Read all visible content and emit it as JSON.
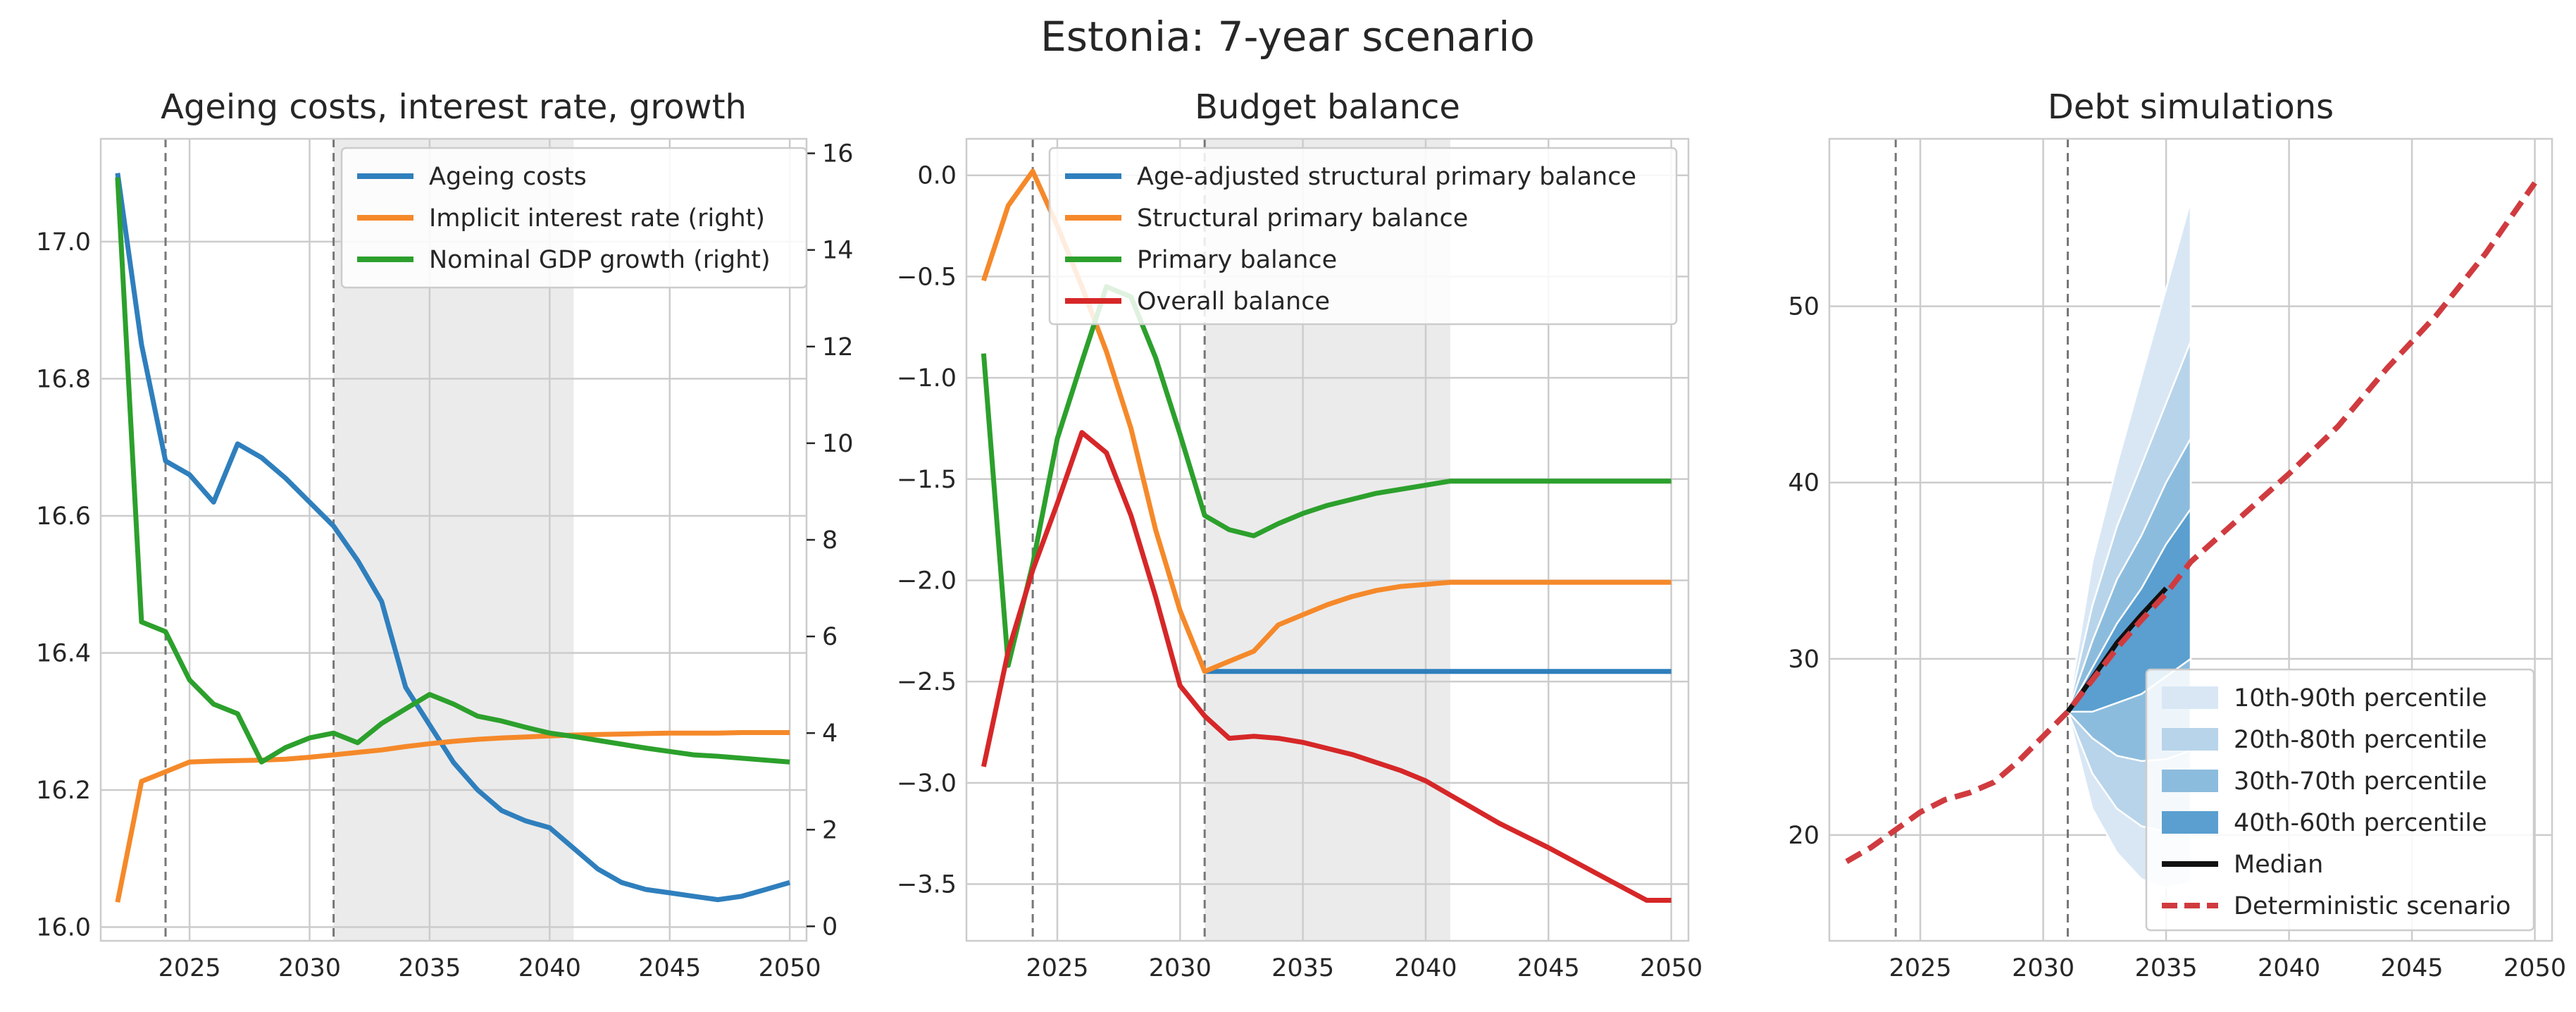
{
  "suptitle": "Estonia: 7-year scenario",
  "colors": {
    "blue": "#2f7fbd",
    "orange": "#f5892a",
    "green": "#2ca02c",
    "red": "#d62728",
    "grid": "#cccccc",
    "shade": "#ebebeb",
    "vline": "#777777",
    "fan1": "#d9e7f5",
    "fan2": "#b8d4ea",
    "fan3": "#8cbcdd",
    "fan4": "#5a9fd0",
    "median": "#111111",
    "det": "#d03b3f"
  },
  "chart_data": [
    {
      "id": "ageing",
      "type": "line",
      "title": "Ageing costs, interest rate, growth",
      "xlim": [
        2021.3,
        2050.7
      ],
      "ylim": [
        15.98,
        17.15
      ],
      "y2lim": [
        -0.3,
        16.3
      ],
      "xticks": [
        2025,
        2030,
        2035,
        2040,
        2045,
        2050
      ],
      "yticks": [
        16.0,
        16.2,
        16.4,
        16.6,
        16.8,
        17.0
      ],
      "ytick_labels": [
        "16.0",
        "16.2",
        "16.4",
        "16.6",
        "16.8",
        "17.0"
      ],
      "y2ticks": [
        0,
        2,
        4,
        6,
        8,
        10,
        12,
        14,
        16
      ],
      "y2tick_labels": [
        "0",
        "2",
        "4",
        "6",
        "8",
        "10",
        "12",
        "14",
        "16"
      ],
      "vlines": [
        2024,
        2031
      ],
      "shade": [
        2031,
        2041
      ],
      "legend_position": "top-right",
      "series": [
        {
          "name": "Ageing costs",
          "axis": "left",
          "color": "blue",
          "x": [
            2022,
            2023,
            2024,
            2025,
            2026,
            2027,
            2028,
            2029,
            2030,
            2031,
            2032,
            2033,
            2034,
            2035,
            2036,
            2037,
            2038,
            2039,
            2040,
            2041,
            2042,
            2043,
            2044,
            2045,
            2046,
            2047,
            2048,
            2049,
            2050
          ],
          "y": [
            17.1,
            16.85,
            16.68,
            16.66,
            16.62,
            16.705,
            16.685,
            16.655,
            16.62,
            16.585,
            16.535,
            16.475,
            16.35,
            16.295,
            16.24,
            16.2,
            16.17,
            16.155,
            16.145,
            16.115,
            16.085,
            16.065,
            16.055,
            16.05,
            16.045,
            16.04,
            16.045,
            16.055,
            16.065
          ]
        },
        {
          "name": "Implicit interest rate (right)",
          "axis": "right",
          "color": "orange",
          "x": [
            2022,
            2023,
            2024,
            2025,
            2026,
            2027,
            2028,
            2029,
            2030,
            2031,
            2032,
            2033,
            2034,
            2035,
            2036,
            2037,
            2038,
            2039,
            2040,
            2041,
            2042,
            2043,
            2044,
            2045,
            2046,
            2047,
            2048,
            2049,
            2050
          ],
          "y": [
            0.5,
            3.0,
            3.2,
            3.4,
            3.42,
            3.43,
            3.44,
            3.46,
            3.5,
            3.55,
            3.6,
            3.65,
            3.72,
            3.78,
            3.83,
            3.87,
            3.9,
            3.92,
            3.94,
            3.96,
            3.97,
            3.98,
            3.99,
            4.0,
            4.0,
            4.0,
            4.01,
            4.01,
            4.01
          ]
        },
        {
          "name": "Nominal GDP growth (right)",
          "axis": "right",
          "color": "green",
          "x": [
            2022,
            2023,
            2024,
            2025,
            2026,
            2027,
            2028,
            2029,
            2030,
            2031,
            2032,
            2033,
            2034,
            2035,
            2036,
            2037,
            2038,
            2039,
            2040,
            2041,
            2042,
            2043,
            2044,
            2045,
            2046,
            2047,
            2048,
            2049,
            2050
          ],
          "y": [
            15.5,
            6.3,
            6.1,
            5.1,
            4.6,
            4.4,
            3.4,
            3.7,
            3.9,
            4.0,
            3.8,
            4.2,
            4.5,
            4.8,
            4.6,
            4.35,
            4.25,
            4.12,
            4.0,
            3.93,
            3.85,
            3.77,
            3.69,
            3.62,
            3.55,
            3.52,
            3.48,
            3.44,
            3.4
          ]
        }
      ]
    },
    {
      "id": "budget",
      "type": "line",
      "title": "Budget balance",
      "xlim": [
        2021.3,
        2050.7
      ],
      "ylim": [
        -3.78,
        0.18
      ],
      "xticks": [
        2025,
        2030,
        2035,
        2040,
        2045,
        2050
      ],
      "yticks": [
        0.0,
        -0.5,
        -1.0,
        -1.5,
        -2.0,
        -2.5,
        -3.0,
        -3.5
      ],
      "ytick_labels": [
        "0.0",
        "−0.5",
        "−1.0",
        "−1.5",
        "−2.0",
        "−2.5",
        "−3.0",
        "−3.5"
      ],
      "vlines": [
        2024,
        2031
      ],
      "shade": [
        2031,
        2041
      ],
      "legend_position": "top-right",
      "series": [
        {
          "name": "Age-adjusted structural primary balance",
          "color": "blue",
          "x": [
            2031,
            2032,
            2034,
            2036,
            2038,
            2040,
            2042,
            2044,
            2046,
            2048,
            2050
          ],
          "y": [
            -2.45,
            -2.45,
            -2.45,
            -2.45,
            -2.45,
            -2.45,
            -2.45,
            -2.45,
            -2.45,
            -2.45,
            -2.45
          ]
        },
        {
          "name": "Structural primary balance",
          "color": "orange",
          "x": [
            2022,
            2023,
            2024,
            2025,
            2026,
            2027,
            2028,
            2029,
            2030,
            2031,
            2032,
            2033,
            2034,
            2035,
            2036,
            2037,
            2038,
            2039,
            2040,
            2041,
            2043,
            2045,
            2047,
            2050
          ],
          "y": [
            -0.52,
            -0.15,
            0.02,
            -0.25,
            -0.55,
            -0.87,
            -1.25,
            -1.75,
            -2.15,
            -2.45,
            -2.4,
            -2.35,
            -2.22,
            -2.17,
            -2.12,
            -2.08,
            -2.05,
            -2.03,
            -2.02,
            -2.01,
            -2.01,
            -2.01,
            -2.01,
            -2.01
          ]
        },
        {
          "name": "Primary balance",
          "color": "green",
          "x": [
            2022,
            2023,
            2024,
            2025,
            2026,
            2027,
            2028,
            2029,
            2030,
            2031,
            2032,
            2033,
            2034,
            2035,
            2036,
            2037,
            2038,
            2039,
            2040,
            2041,
            2043,
            2045,
            2047,
            2050
          ],
          "y": [
            -0.88,
            -2.42,
            -1.92,
            -1.3,
            -0.92,
            -0.55,
            -0.6,
            -0.9,
            -1.28,
            -1.68,
            -1.75,
            -1.78,
            -1.72,
            -1.67,
            -1.63,
            -1.6,
            -1.57,
            -1.55,
            -1.53,
            -1.51,
            -1.51,
            -1.51,
            -1.51,
            -1.51
          ]
        },
        {
          "name": "Overall balance",
          "color": "red",
          "x": [
            2022,
            2023,
            2024,
            2025,
            2026,
            2027,
            2028,
            2029,
            2030,
            2031,
            2032,
            2033,
            2034,
            2035,
            2036,
            2037,
            2038,
            2039,
            2040,
            2041,
            2043,
            2045,
            2047,
            2049,
            2050
          ],
          "y": [
            -2.92,
            -2.35,
            -1.95,
            -1.62,
            -1.27,
            -1.37,
            -1.68,
            -2.08,
            -2.52,
            -2.67,
            -2.78,
            -2.77,
            -2.78,
            -2.8,
            -2.83,
            -2.86,
            -2.9,
            -2.94,
            -2.99,
            -3.06,
            -3.2,
            -3.32,
            -3.45,
            -3.58,
            -3.58
          ]
        }
      ]
    },
    {
      "id": "debt",
      "type": "line",
      "title": "Debt simulations",
      "xlim": [
        2021.3,
        2050.7
      ],
      "ylim": [
        14.0,
        59.5
      ],
      "xticks": [
        2025,
        2030,
        2035,
        2040,
        2045,
        2050
      ],
      "yticks": [
        20,
        30,
        40,
        50
      ],
      "ytick_labels": [
        "20",
        "30",
        "40",
        "50"
      ],
      "vlines": [
        2024,
        2031
      ],
      "legend_position": "bottom-right",
      "fan_x": [
        2031,
        2032,
        2033,
        2034,
        2035,
        2036
      ],
      "fan": [
        {
          "name": "10th-90th percentile",
          "color": "fan1",
          "lower": [
            27.0,
            21.5,
            19.0,
            17.5,
            17.0,
            17.3
          ],
          "upper": [
            27.0,
            35.5,
            41.0,
            46.0,
            51.0,
            56.0
          ]
        },
        {
          "name": "20th-80th percentile",
          "color": "fan2",
          "lower": [
            27.0,
            23.5,
            21.5,
            20.5,
            20.2,
            20.5
          ],
          "upper": [
            27.0,
            33.0,
            37.5,
            41.0,
            44.5,
            48.0
          ]
        },
        {
          "name": "30th-70th percentile",
          "color": "fan3",
          "lower": [
            27.0,
            25.5,
            24.5,
            24.2,
            24.3,
            24.8
          ],
          "upper": [
            27.0,
            31.0,
            34.5,
            37.0,
            40.0,
            42.5
          ]
        },
        {
          "name": "40th-60th percentile",
          "color": "fan4",
          "lower": [
            27.0,
            27.0,
            27.5,
            28.0,
            29.0,
            30.0
          ],
          "upper": [
            27.0,
            29.5,
            32.0,
            34.0,
            36.5,
            38.5
          ]
        }
      ],
      "series": [
        {
          "name": "Median",
          "color": "median",
          "style": "solid",
          "x": [
            2031,
            2032,
            2033,
            2034,
            2035
          ],
          "y": [
            27.0,
            28.9,
            30.9,
            32.5,
            34.0
          ]
        },
        {
          "name": "Deterministic scenario",
          "color": "det",
          "style": "dashed",
          "x": [
            2022,
            2023,
            2024,
            2025,
            2026,
            2027,
            2028,
            2029,
            2030,
            2031,
            2032,
            2033,
            2034,
            2035,
            2036,
            2038,
            2040,
            2042,
            2044,
            2046,
            2048,
            2050
          ],
          "y": [
            18.5,
            19.3,
            20.3,
            21.3,
            22.0,
            22.4,
            23.0,
            24.2,
            25.6,
            27.0,
            28.8,
            30.6,
            32.2,
            33.7,
            35.5,
            38.0,
            40.5,
            43.2,
            46.5,
            49.5,
            53.0,
            57.0
          ]
        }
      ]
    }
  ]
}
